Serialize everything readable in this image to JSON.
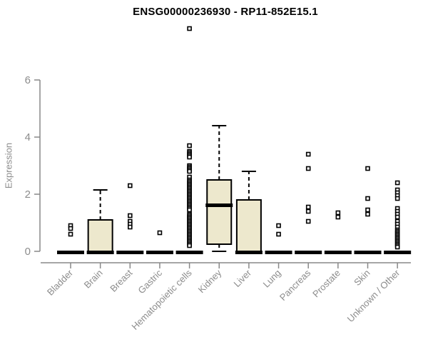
{
  "chart_data": {
    "type": "boxplot",
    "title": "ENSG00000236930 - RP11-852E15.1",
    "ylabel": "Expression",
    "xlabel": "",
    "ylim": [
      0,
      6
    ],
    "yticks": [
      0,
      2,
      4,
      6
    ],
    "grid": false,
    "legend": null,
    "categories": [
      "Bladder",
      "Brain",
      "Breast",
      "Gastric",
      "Hematopoietic cells",
      "Kidney",
      "Liver",
      "Lung",
      "Pancreas",
      "Prostate",
      "Skin",
      "Unknown / Other"
    ],
    "boxes": [
      {
        "category": "Bladder",
        "q1": 0,
        "median": 0,
        "q3": 0,
        "whisker_low": 0,
        "whisker_high": 0,
        "outliers": [
          0.9,
          0.8,
          0.6
        ]
      },
      {
        "category": "Brain",
        "q1": 0,
        "median": 0,
        "q3": 1.1,
        "whisker_low": 0,
        "whisker_high": 2.15,
        "outliers": []
      },
      {
        "category": "Breast",
        "q1": 0,
        "median": 0,
        "q3": 0,
        "whisker_low": 0,
        "whisker_high": 0,
        "outliers": [
          2.3,
          1.25,
          1.05,
          0.95,
          0.85
        ]
      },
      {
        "category": "Gastric",
        "q1": 0,
        "median": 0,
        "q3": 0,
        "whisker_low": 0,
        "whisker_high": 0,
        "outliers": [
          0.65
        ]
      },
      {
        "category": "Hematopoietic cells",
        "q1": 0,
        "median": 0,
        "q3": 0,
        "whisker_low": 0,
        "whisker_high": 0,
        "outliers": [
          7.8,
          3.7,
          3.5,
          3.45,
          3.4,
          3.35,
          3.3,
          3.0,
          2.95,
          2.9,
          2.85,
          2.8,
          2.6,
          2.5,
          2.45,
          2.4,
          2.35,
          2.3,
          2.25,
          2.2,
          2.15,
          2.1,
          2.05,
          2.0,
          1.95,
          1.9,
          1.85,
          1.8,
          1.75,
          1.7,
          1.65,
          1.6,
          1.55,
          1.5,
          1.45,
          1.3,
          1.25,
          1.2,
          1.15,
          1.1,
          1.05,
          1.0,
          0.95,
          0.9,
          0.85,
          0.8,
          0.75,
          0.7,
          0.65,
          0.6,
          0.55,
          0.5,
          0.45,
          0.4,
          0.35,
          0.3,
          0.25,
          0.2
        ]
      },
      {
        "category": "Kidney",
        "q1": 0.25,
        "median": 1.65,
        "q3": 2.5,
        "whisker_low": 0,
        "whisker_high": 4.4,
        "outliers": []
      },
      {
        "category": "Liver",
        "q1": 0,
        "median": 0,
        "q3": 1.8,
        "whisker_low": 0,
        "whisker_high": 2.8,
        "outliers": []
      },
      {
        "category": "Lung",
        "q1": 0,
        "median": 0,
        "q3": 0,
        "whisker_low": 0,
        "whisker_high": 0,
        "outliers": [
          0.9,
          0.6
        ]
      },
      {
        "category": "Pancreas",
        "q1": 0,
        "median": 0,
        "q3": 0,
        "whisker_low": 0,
        "whisker_high": 0,
        "outliers": [
          3.4,
          2.9,
          1.55,
          1.4,
          1.05
        ]
      },
      {
        "category": "Prostate",
        "q1": 0,
        "median": 0,
        "q3": 0,
        "whisker_low": 0,
        "whisker_high": 0,
        "outliers": [
          1.35,
          1.2
        ]
      },
      {
        "category": "Skin",
        "q1": 0,
        "median": 0,
        "q3": 0,
        "whisker_low": 0,
        "whisker_high": 0,
        "outliers": [
          2.9,
          1.85,
          1.45,
          1.3
        ]
      },
      {
        "category": "Unknown / Other",
        "q1": 0,
        "median": 0,
        "q3": 0,
        "whisker_low": 0,
        "whisker_high": 0,
        "outliers": [
          2.4,
          2.15,
          2.05,
          1.95,
          1.85,
          1.5,
          1.4,
          1.3,
          1.2,
          1.05,
          0.95,
          0.85,
          0.75,
          0.7,
          0.65,
          0.6,
          0.55,
          0.5,
          0.45,
          0.4,
          0.35,
          0.3,
          0.25,
          0.2,
          0.15
        ]
      }
    ],
    "colors": {
      "box_fill": "#ede8cd",
      "box_stroke": "#000000",
      "median": "#000000",
      "whisker": "#000000",
      "outlier_stroke": "#000000",
      "outlier_fill": "#ffffff",
      "axis": "#888888",
      "tick_label": "#8c8c8c",
      "title": "#000000"
    }
  }
}
